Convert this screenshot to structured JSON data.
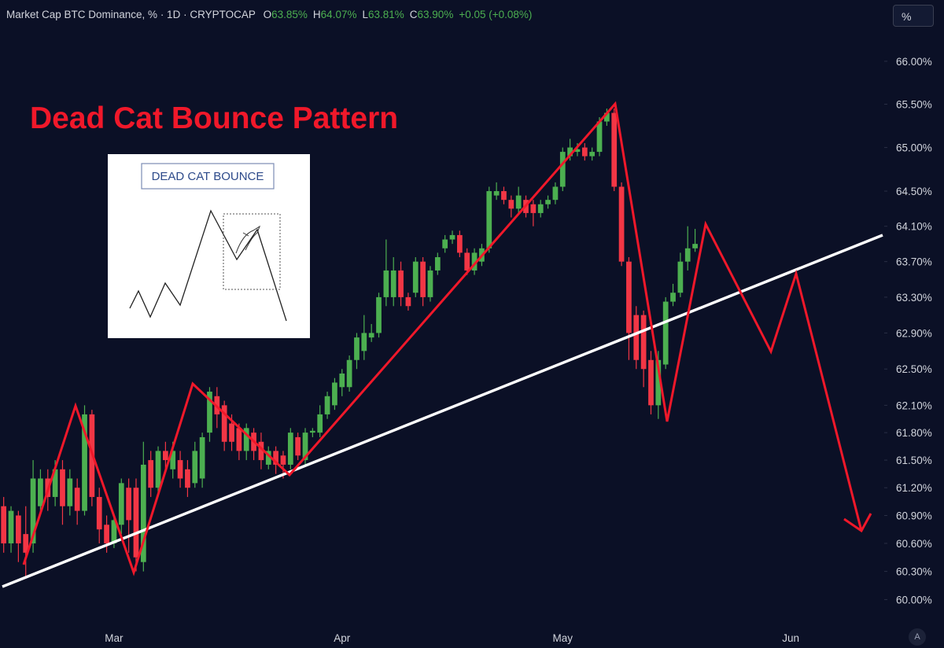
{
  "chart_data": {
    "type": "candlestick",
    "header": {
      "symbol": "Market Cap BTC Dominance, % · 1D · CRYPTOCAP",
      "ohlc": [
        {
          "label": "O",
          "value": "63.85%"
        },
        {
          "label": "H",
          "value": "64.07%"
        },
        {
          "label": "L",
          "value": "63.81%"
        },
        {
          "label": "C",
          "value": "63.90%"
        }
      ],
      "change": "+0.05 (+0.08%)"
    },
    "annotation": "Dead Cat Bounce Pattern",
    "inset_title": "DEAD CAT BOUNCE",
    "percent_button": "%",
    "auto_button": "A",
    "up_color": "#4caf50",
    "down_color": "#f23645",
    "log_scale": true,
    "ylim": [
      59.77,
      66.72
    ],
    "yticks": [
      {
        "value": 66,
        "label": "66.00%"
      },
      {
        "value": 65.5,
        "label": "65.50%"
      },
      {
        "value": 65,
        "label": "65.00%"
      },
      {
        "value": 64.5,
        "label": "64.50%"
      },
      {
        "value": 64.1,
        "label": "64.10%"
      },
      {
        "value": 63.7,
        "label": "63.70%"
      },
      {
        "value": 63.3,
        "label": "63.30%"
      },
      {
        "value": 62.9,
        "label": "62.90%"
      },
      {
        "value": 62.5,
        "label": "62.50%"
      },
      {
        "value": 62.1,
        "label": "62.10%"
      },
      {
        "value": 61.8,
        "label": "61.80%"
      },
      {
        "value": 61.5,
        "label": "61.50%"
      },
      {
        "value": 61.2,
        "label": "61.20%"
      },
      {
        "value": 60.9,
        "label": "60.90%"
      },
      {
        "value": 60.6,
        "label": "60.60%"
      },
      {
        "value": 60.3,
        "label": "60.30%"
      },
      {
        "value": 60,
        "label": "60.00%"
      }
    ],
    "categories": [
      null,
      null,
      null,
      null,
      null,
      null,
      null,
      null,
      null,
      null,
      null,
      null,
      null,
      null,
      null,
      "Mar",
      null,
      null,
      null,
      null,
      null,
      null,
      null,
      null,
      null,
      null,
      null,
      null,
      null,
      null,
      null,
      null,
      null,
      null,
      null,
      null,
      null,
      null,
      null,
      null,
      null,
      null,
      null,
      null,
      null,
      null,
      "Apr",
      null,
      null,
      null,
      null,
      null,
      null,
      null,
      null,
      null,
      null,
      null,
      null,
      null,
      null,
      null,
      null,
      null,
      null,
      null,
      null,
      null,
      null,
      null,
      null,
      null,
      null,
      null,
      null,
      null,
      "May",
      null,
      null,
      null,
      null,
      null,
      null,
      null,
      null,
      null,
      null,
      null,
      null,
      null,
      null,
      null,
      null,
      null,
      null,
      null,
      null,
      null,
      null,
      null,
      null,
      null,
      null,
      null,
      null,
      null,
      null,
      "Jun",
      null,
      null,
      null,
      null,
      null,
      null,
      null,
      null,
      null,
      null,
      null,
      null
    ],
    "open": [
      61.0,
      60.6,
      60.9,
      60.7,
      60.6,
      61.0,
      61.3,
      61.1,
      61.4,
      61.0,
      61.2,
      60.95,
      62.0,
      61.1,
      60.8,
      60.6,
      60.8,
      61.2,
      61.2,
      60.4,
      61.5,
      61.2,
      61.6,
      61.4,
      61.5,
      61.4,
      61.25,
      61.3,
      61.8,
      62.2,
      62.1,
      61.9,
      61.85,
      61.6,
      61.8,
      61.7,
      61.45,
      61.6,
      61.55,
      61.45,
      61.75,
      61.5,
      61.8,
      61.8,
      62.0,
      62.1,
      62.3,
      62.3,
      62.6,
      62.7,
      62.85,
      62.9,
      63.3,
      63.3,
      63.6,
      63.3,
      63.35,
      63.7,
      63.3,
      63.6,
      63.85,
      63.95,
      64.0,
      63.8,
      63.6,
      63.7,
      63.85,
      64.45,
      64.5,
      64.4,
      64.3,
      64.4,
      64.35,
      64.25,
      64.35,
      64.4,
      64.55,
      64.9,
      64.95,
      65.0,
      64.9,
      64.95,
      65.3,
      65.4,
      64.55,
      63.7,
      63.1,
      63.1,
      62.6,
      62.1,
      62.55,
      63.25,
      63.35,
      63.7,
      63.85,
      null,
      null,
      null,
      null,
      null,
      null,
      null,
      null,
      null,
      null,
      null,
      null,
      null,
      null,
      null,
      null,
      null,
      null,
      null,
      null,
      null,
      null,
      null,
      null,
      null
    ],
    "high": [
      61.1,
      61.0,
      60.95,
      61.0,
      61.5,
      61.4,
      61.4,
      61.5,
      61.5,
      61.4,
      61.3,
      62.1,
      62.05,
      61.2,
      60.9,
      60.9,
      61.3,
      61.3,
      61.3,
      61.7,
      61.6,
      61.65,
      61.7,
      61.7,
      61.6,
      61.5,
      61.7,
      61.8,
      62.3,
      62.3,
      62.15,
      62.0,
      61.9,
      61.9,
      61.85,
      61.8,
      61.65,
      61.65,
      61.6,
      61.85,
      61.8,
      61.85,
      61.85,
      62.1,
      62.25,
      62.4,
      62.5,
      62.65,
      62.9,
      63.1,
      63.0,
      63.35,
      63.95,
      63.75,
      63.7,
      63.35,
      63.75,
      63.75,
      63.65,
      63.8,
      64.0,
      64.05,
      64.05,
      63.85,
      63.85,
      63.9,
      64.55,
      64.6,
      64.55,
      64.45,
      64.55,
      64.45,
      64.4,
      64.4,
      64.45,
      64.6,
      65.0,
      65.1,
      65.05,
      65.05,
      65.0,
      65.35,
      65.45,
      65.45,
      64.6,
      63.75,
      63.2,
      63.15,
      62.7,
      62.7,
      63.3,
      63.45,
      63.8,
      64.1,
      64.07,
      null,
      null,
      null,
      null,
      null,
      null,
      null,
      null,
      null,
      null,
      null,
      null,
      null,
      null,
      null,
      null,
      null,
      null,
      null,
      null,
      null,
      null,
      null,
      null,
      null
    ],
    "low": [
      60.5,
      60.5,
      60.4,
      60.25,
      60.5,
      60.9,
      60.95,
      61.0,
      60.8,
      60.9,
      60.8,
      60.9,
      61.0,
      60.6,
      60.5,
      60.55,
      60.7,
      60.5,
      60.3,
      60.3,
      61.1,
      61.1,
      61.4,
      61.3,
      61.2,
      61.1,
      61.2,
      61.2,
      61.7,
      61.85,
      61.6,
      61.6,
      61.5,
      61.5,
      61.5,
      61.4,
      61.4,
      61.35,
      61.3,
      61.4,
      61.5,
      61.45,
      61.75,
      61.75,
      61.95,
      62.05,
      62.2,
      62.25,
      62.5,
      62.6,
      62.8,
      62.85,
      63.2,
      63.2,
      63.2,
      63.15,
      63.3,
      63.2,
      63.25,
      63.55,
      63.8,
      63.9,
      63.75,
      63.55,
      63.55,
      63.65,
      63.8,
      64.4,
      64.35,
      64.2,
      64.25,
      64.2,
      64.1,
      64.2,
      64.3,
      64.35,
      64.5,
      64.85,
      64.9,
      64.85,
      64.85,
      64.9,
      65.25,
      64.5,
      63.65,
      62.6,
      62.5,
      62.3,
      62.0,
      61.95,
      62.5,
      63.2,
      63.3,
      63.6,
      63.81,
      null,
      null,
      null,
      null,
      null,
      null,
      null,
      null,
      null,
      null,
      null,
      null,
      null,
      null,
      null,
      null,
      null,
      null,
      null,
      null,
      null,
      null,
      null,
      null,
      null
    ],
    "close": [
      60.6,
      60.95,
      60.6,
      60.5,
      61.3,
      61.3,
      61.1,
      61.4,
      61.0,
      61.3,
      60.95,
      62.0,
      61.1,
      60.75,
      60.6,
      60.85,
      61.25,
      60.85,
      60.45,
      61.45,
      61.2,
      61.6,
      61.5,
      61.6,
      61.3,
      61.2,
      61.6,
      61.75,
      62.25,
      62.0,
      61.7,
      61.7,
      61.6,
      61.85,
      61.6,
      61.5,
      61.6,
      61.45,
      61.45,
      61.8,
      61.55,
      61.8,
      61.82,
      62.0,
      62.2,
      62.35,
      62.45,
      62.6,
      62.85,
      62.9,
      62.9,
      63.3,
      63.6,
      63.6,
      63.3,
      63.2,
      63.7,
      63.3,
      63.6,
      63.75,
      63.95,
      64.0,
      63.8,
      63.6,
      63.8,
      63.85,
      64.5,
      64.5,
      64.4,
      64.3,
      64.45,
      64.25,
      64.25,
      64.35,
      64.4,
      64.55,
      64.95,
      65.0,
      64.98,
      64.9,
      64.95,
      65.3,
      65.4,
      64.55,
      63.7,
      62.9,
      62.6,
      62.5,
      62.1,
      62.6,
      63.25,
      63.35,
      63.7,
      63.85,
      63.9,
      null,
      null,
      null,
      null,
      null,
      null,
      null,
      null,
      null,
      null,
      null,
      null,
      null,
      null,
      null,
      null,
      null,
      null,
      null,
      null,
      null,
      null,
      null,
      null,
      null
    ]
  }
}
